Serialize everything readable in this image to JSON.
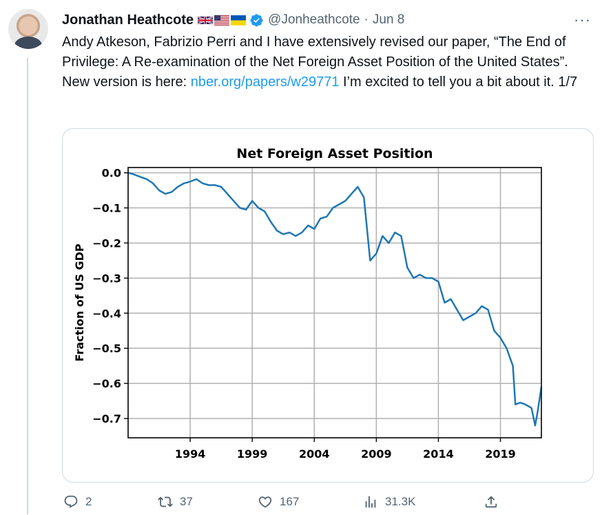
{
  "author": {
    "name": "Jonathan Heathcote",
    "handle": "@Jonheathcote",
    "dot": "·",
    "date": "Jun 8"
  },
  "flags": [
    "uk-flag-icon",
    "us-flag-icon",
    "ukraine-flag-icon"
  ],
  "more_label": "···",
  "text": {
    "part1": "Andy Atkeson, Fabrizio Perri and I have extensively revised our paper, “The End of Privilege: A Re-examination of the Net Foreign Asset Position of the United States”. New version is here: ",
    "link": "nber.org/papers/w29771",
    "part2": " I’m excited to tell you a bit about it. 1/7"
  },
  "actions": {
    "reply": {
      "icon": "reply-icon",
      "count": "2"
    },
    "retweet": {
      "icon": "retweet-icon",
      "count": "37"
    },
    "like": {
      "icon": "heart-icon",
      "count": "167"
    },
    "views": {
      "icon": "views-icon",
      "count": "31.3K"
    },
    "share": {
      "icon": "share-icon"
    }
  },
  "colors": {
    "accent": "#1d9bf0",
    "line": "#1f77b4",
    "muted": "#536471"
  },
  "chart_data": {
    "type": "line",
    "title": "Net Foreign Asset Position",
    "xlabel": "",
    "ylabel": "Fraction of US GDP",
    "xlim": [
      1989.0,
      2022.3
    ],
    "ylim": [
      -0.755,
      0.015
    ],
    "xticks": [
      1994,
      1999,
      2004,
      2009,
      2014,
      2019
    ],
    "yticks": [
      0.0,
      -0.1,
      -0.2,
      -0.3,
      -0.4,
      -0.5,
      -0.6,
      -0.7
    ],
    "grid": true,
    "series": [
      {
        "x": [
          1989.0,
          1989.5,
          1990.0,
          1990.5,
          1991.0,
          1991.5,
          1992.0,
          1992.5,
          1993.0,
          1993.5,
          1994.0,
          1994.5,
          1995.0,
          1995.5,
          1996.0,
          1996.5,
          1997.0,
          1997.5,
          1998.0,
          1998.5,
          1999.0,
          1999.5,
          2000.0,
          2000.5,
          2001.0,
          2001.5,
          2002.0,
          2002.5,
          2003.0,
          2003.5,
          2004.0,
          2004.5,
          2005.0,
          2005.5,
          2006.0,
          2006.5,
          2007.0,
          2007.5,
          2008.0,
          2008.5,
          2009.0,
          2009.5,
          2010.0,
          2010.5,
          2011.0,
          2011.5,
          2012.0,
          2012.5,
          2013.0,
          2013.5,
          2014.0,
          2014.5,
          2015.0,
          2015.5,
          2016.0,
          2016.5,
          2017.0,
          2017.5,
          2018.0,
          2018.5,
          2019.0,
          2019.5,
          2020.0,
          2020.2,
          2020.6,
          2021.0,
          2021.5,
          2021.8,
          2022.0,
          2022.3
        ],
        "y": [
          0.0,
          -0.005,
          -0.012,
          -0.018,
          -0.03,
          -0.05,
          -0.06,
          -0.055,
          -0.04,
          -0.03,
          -0.025,
          -0.018,
          -0.03,
          -0.035,
          -0.035,
          -0.04,
          -0.06,
          -0.08,
          -0.1,
          -0.105,
          -0.08,
          -0.1,
          -0.11,
          -0.14,
          -0.165,
          -0.175,
          -0.17,
          -0.18,
          -0.17,
          -0.15,
          -0.16,
          -0.13,
          -0.125,
          -0.1,
          -0.09,
          -0.08,
          -0.06,
          -0.04,
          -0.07,
          -0.25,
          -0.23,
          -0.18,
          -0.2,
          -0.17,
          -0.18,
          -0.27,
          -0.3,
          -0.29,
          -0.3,
          -0.3,
          -0.31,
          -0.37,
          -0.36,
          -0.39,
          -0.42,
          -0.41,
          -0.4,
          -0.38,
          -0.39,
          -0.45,
          -0.47,
          -0.5,
          -0.55,
          -0.66,
          -0.655,
          -0.66,
          -0.67,
          -0.72,
          -0.68,
          -0.61
        ]
      }
    ]
  }
}
